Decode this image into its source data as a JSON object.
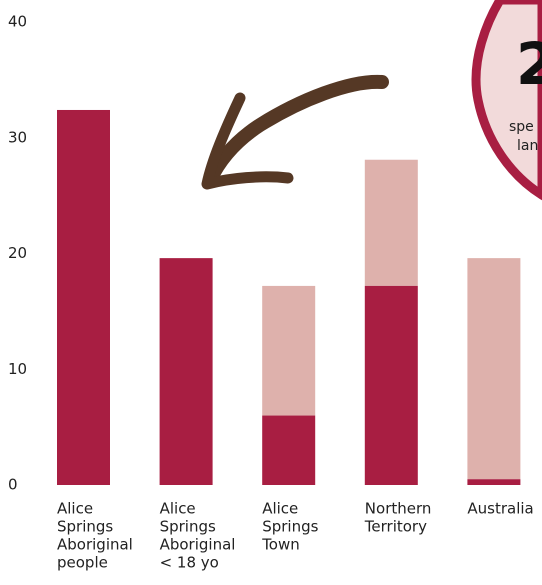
{
  "chart_data": {
    "type": "stacked-bar",
    "categories": [
      [
        "Alice",
        "Springs",
        "Aboriginal",
        "people"
      ],
      [
        "Alice",
        "Springs",
        "Aboriginal",
        "< 18 yo"
      ],
      [
        "Alice",
        "Springs",
        "Town"
      ],
      [
        "Northern",
        "Territory"
      ],
      [
        "Australia"
      ]
    ],
    "series": [
      {
        "color": "#a81e42",
        "values": [
          32.4,
          19.6,
          6.0,
          17.2,
          0.5
        ]
      },
      {
        "color": "#deb1ac",
        "values": [
          0,
          0,
          11.2,
          10.9,
          19.1
        ]
      }
    ],
    "ylim": [
      0,
      40
    ],
    "yticks": [
      0,
      10,
      20,
      30,
      40
    ],
    "grid": false,
    "annotations": [
      "2",
      "spe",
      "lan"
    ]
  }
}
